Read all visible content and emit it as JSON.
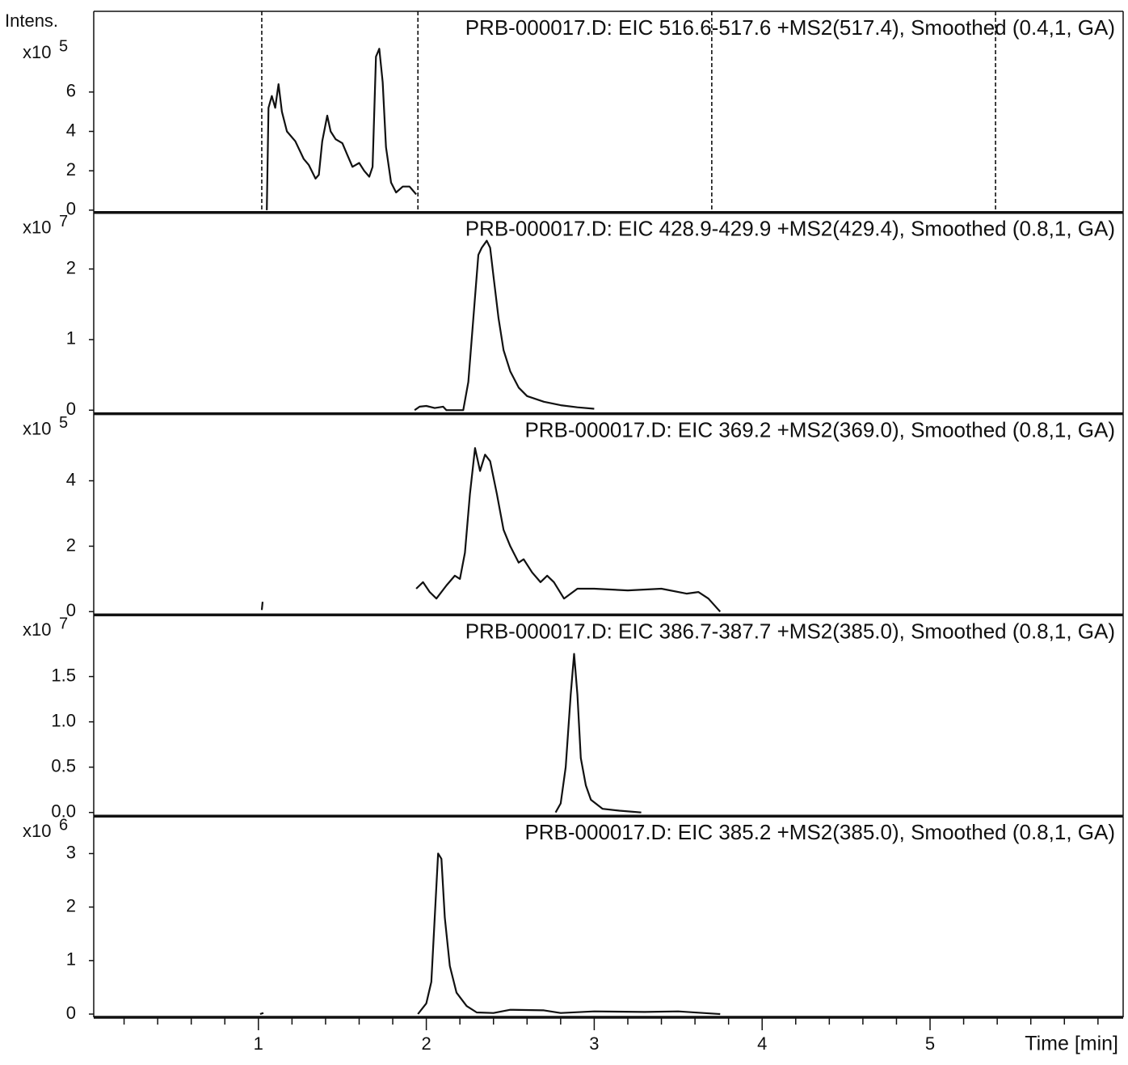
{
  "chart_data": [
    {
      "type": "line",
      "title": "PRB-000017.D: EIC 516.6-517.6 +MS2(517.4), Smoothed (0.4,1, GA)",
      "ylabel": "Intens.",
      "y_scale_label": "x10",
      "y_scale_exponent": "5",
      "xlim": [
        0,
        6.15
      ],
      "ylim": [
        -0.12,
        10.1
      ],
      "yticks": [
        0,
        2,
        4,
        6
      ],
      "color": "#111111",
      "vlines": [
        1.02,
        1.95,
        3.7,
        5.39
      ],
      "x": [
        1.05,
        1.06,
        1.08,
        1.1,
        1.12,
        1.14,
        1.17,
        1.22,
        1.27,
        1.3,
        1.34,
        1.36,
        1.38,
        1.41,
        1.43,
        1.46,
        1.5,
        1.53,
        1.56,
        1.6,
        1.63,
        1.66,
        1.68,
        1.7,
        1.72,
        1.74,
        1.76,
        1.79,
        1.82,
        1.86,
        1.9,
        1.94
      ],
      "values": [
        0,
        5.2,
        5.8,
        5.2,
        6.4,
        5.0,
        4.0,
        3.5,
        2.6,
        2.3,
        1.6,
        1.8,
        3.5,
        4.8,
        4.0,
        3.6,
        3.4,
        2.8,
        2.2,
        2.4,
        2.0,
        1.7,
        2.2,
        7.8,
        8.2,
        6.5,
        3.2,
        1.4,
        0.9,
        1.2,
        1.2,
        0.8
      ]
    },
    {
      "type": "line",
      "title": "PRB-000017.D: EIC 428.9-429.9 +MS2(429.4), Smoothed (0.8,1, GA)",
      "y_scale_label": "x10",
      "y_scale_exponent": "7",
      "xlim": [
        0,
        6.15
      ],
      "ylim": [
        -0.05,
        2.8
      ],
      "yticks": [
        0,
        1,
        2
      ],
      "color": "#111111",
      "x": [
        1.93,
        1.96,
        2.0,
        2.05,
        2.1,
        2.12,
        2.22,
        2.25,
        2.28,
        2.31,
        2.33,
        2.36,
        2.38,
        2.4,
        2.43,
        2.46,
        2.5,
        2.55,
        2.6,
        2.7,
        2.8,
        2.9,
        3.0
      ],
      "values": [
        0.0,
        0.05,
        0.06,
        0.03,
        0.05,
        0.0,
        0.0,
        0.4,
        1.3,
        2.2,
        2.3,
        2.4,
        2.3,
        1.9,
        1.3,
        0.85,
        0.55,
        0.32,
        0.2,
        0.12,
        0.07,
        0.04,
        0.02
      ]
    },
    {
      "type": "line",
      "title": "PRB-000017.D: EIC 369.2 +MS2(369.0), Smoothed (0.8,1, GA)",
      "y_scale_label": "x10",
      "y_scale_exponent": "5",
      "xlim": [
        0,
        6.15
      ],
      "ylim": [
        -0.1,
        6.05
      ],
      "yticks": [
        0,
        2,
        4
      ],
      "color": "#111111",
      "x": [
        1.02,
        1.025,
        1.5,
        1.94,
        1.98,
        2.02,
        2.06,
        2.12,
        2.17,
        2.2,
        2.23,
        2.26,
        2.29,
        2.32,
        2.35,
        2.38,
        2.42,
        2.46,
        2.5,
        2.55,
        2.58,
        2.63,
        2.68,
        2.72,
        2.76,
        2.82,
        2.9,
        3.0,
        3.2,
        3.4,
        3.55,
        3.62,
        3.68,
        3.75
      ],
      "values": [
        0.05,
        0.3,
        null,
        0.7,
        0.9,
        0.6,
        0.4,
        0.8,
        1.1,
        1.0,
        1.8,
        3.6,
        5.0,
        4.3,
        4.8,
        4.6,
        3.6,
        2.5,
        2.0,
        1.5,
        1.6,
        1.2,
        0.9,
        1.1,
        0.9,
        0.4,
        0.7,
        0.7,
        0.65,
        0.7,
        0.55,
        0.6,
        0.4,
        0.0
      ]
    },
    {
      "type": "line",
      "title": "PRB-000017.D: EIC 386.7-387.7 +MS2(385.0), Smoothed (0.8,1, GA)",
      "y_scale_label": "x10",
      "y_scale_exponent": "7",
      "xlim": [
        0,
        6.15
      ],
      "ylim": [
        -0.04,
        2.18
      ],
      "yticks": [
        {
          "value": 0,
          "label": "0.0"
        },
        0.5,
        {
          "value": 1,
          "label": "1.0"
        },
        1.5
      ],
      "color": "#111111",
      "x": [
        2.77,
        2.8,
        2.83,
        2.86,
        2.88,
        2.9,
        2.92,
        2.95,
        2.98,
        3.05,
        3.15,
        3.28
      ],
      "values": [
        0.0,
        0.1,
        0.5,
        1.3,
        1.75,
        1.3,
        0.6,
        0.3,
        0.14,
        0.04,
        0.02,
        0.0
      ]
    },
    {
      "type": "line",
      "title": "PRB-000017.D: EIC 385.2 +MS2(385.0), Smoothed (0.8,1, GA)",
      "y_scale_label": "x10",
      "y_scale_exponent": "6",
      "xlim": [
        0,
        6.15
      ],
      "ylim": [
        -0.06,
        3.7
      ],
      "yticks": [
        0,
        1,
        2,
        3
      ],
      "color": "#111111",
      "xticks": [
        1,
        2,
        3,
        4,
        5
      ],
      "xminorticks": [
        0.2,
        0.4,
        0.6,
        0.8,
        1.2,
        1.4,
        1.6,
        1.8,
        2.2,
        2.4,
        2.6,
        2.8,
        3.2,
        3.4,
        3.6,
        3.8,
        4.2,
        4.4,
        4.6,
        4.8,
        5.2,
        5.4,
        5.6,
        5.8,
        6.0
      ],
      "xlabel": "Time [min]",
      "x": [
        1.01,
        1.03,
        1.5,
        1.95,
        2.0,
        2.03,
        2.05,
        2.07,
        2.09,
        2.11,
        2.14,
        2.18,
        2.24,
        2.3,
        2.4,
        2.5,
        2.7,
        2.8,
        3.0,
        3.3,
        3.5,
        3.75
      ],
      "values": [
        0,
        0.02,
        null,
        0.0,
        0.2,
        0.6,
        1.8,
        3.0,
        2.9,
        1.8,
        0.9,
        0.4,
        0.15,
        0.03,
        0.02,
        0.08,
        0.07,
        0.02,
        0.05,
        0.04,
        0.05,
        0.0
      ]
    }
  ]
}
